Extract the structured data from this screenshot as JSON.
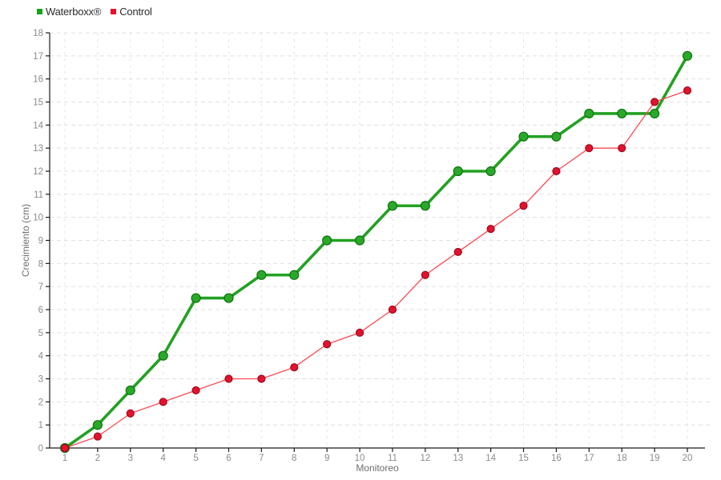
{
  "legend": {
    "items": [
      {
        "label": "Waterboxx®",
        "color": "#17a317"
      },
      {
        "label": "Control",
        "color": "#e8112d"
      }
    ]
  },
  "chart_data": {
    "type": "line",
    "title": "",
    "xlabel": "Monitoreo",
    "ylabel": "Crecimiento (cm)",
    "x": [
      1,
      2,
      3,
      4,
      5,
      6,
      7,
      8,
      9,
      10,
      11,
      12,
      13,
      14,
      15,
      16,
      17,
      18,
      19,
      20
    ],
    "series": [
      {
        "name": "Waterboxx®",
        "values": [
          0,
          1,
          2.5,
          4,
          6.5,
          6.5,
          7.5,
          7.5,
          9,
          9,
          10.5,
          10.5,
          12,
          12,
          13.5,
          13.5,
          14.5,
          14.5,
          14.5,
          17
        ],
        "line_color": "#22a122",
        "line_width": 3.6,
        "marker_fill": "#2aa82a",
        "marker_stroke": "#0d720d",
        "marker_radius": 5.5
      },
      {
        "name": "Control",
        "values": [
          0,
          0.5,
          1.5,
          2,
          2.5,
          3,
          3,
          3.5,
          4.5,
          5,
          6,
          7.5,
          8.5,
          9.5,
          10.5,
          12,
          13,
          13,
          15,
          15.5
        ],
        "line_color": "#fd4a52",
        "line_width": 1.3,
        "marker_fill": "#e3122d",
        "marker_stroke": "#9d0c1f",
        "marker_radius": 4.5
      }
    ],
    "ylim": [
      0,
      18
    ],
    "y_tick_step": 1,
    "grid": true,
    "legend_position": "top-left",
    "background": "#ffffff",
    "axis_color": "#1a1a1a",
    "grid_color_h": "#e0e0e0",
    "grid_color_v": "#e4e4e4"
  }
}
